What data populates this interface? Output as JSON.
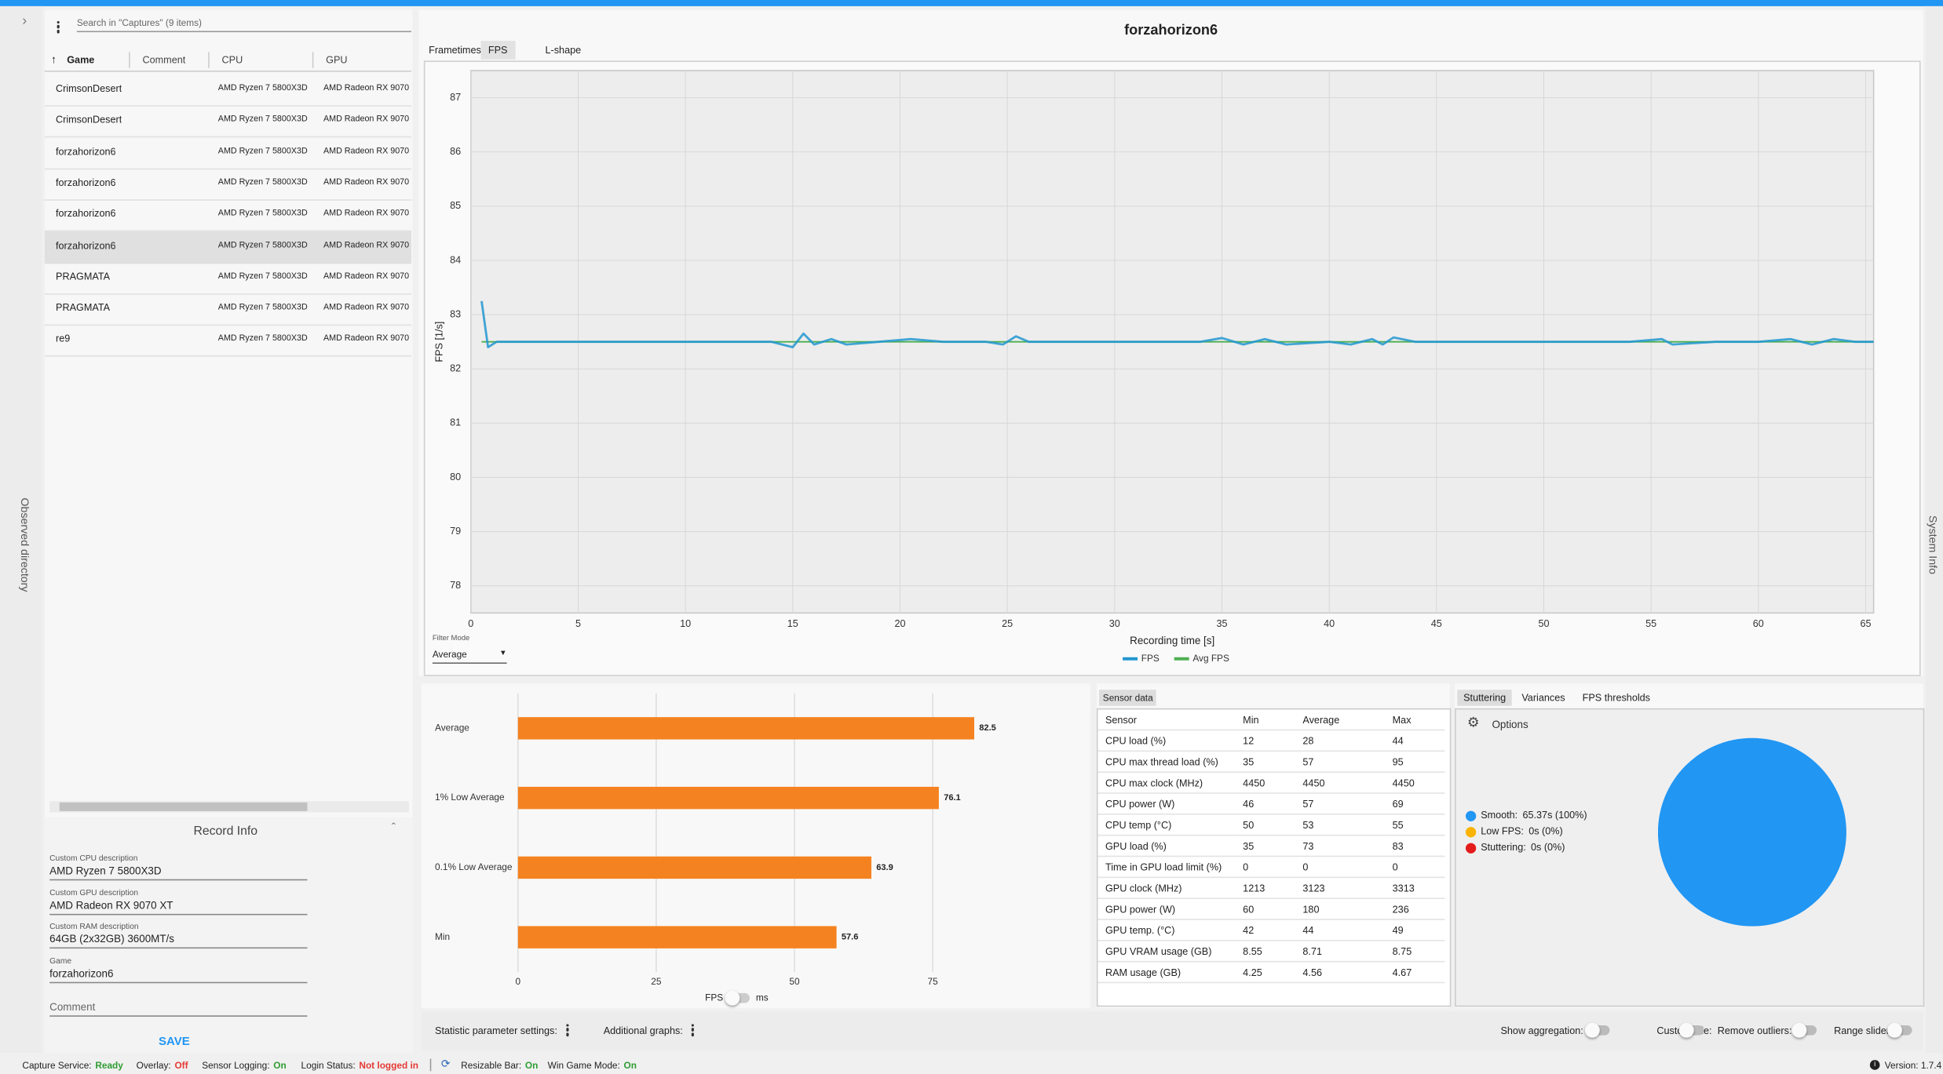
{
  "sidebar": {
    "search_placeholder": "Search in \"Captures\" (9 items)",
    "columns": [
      "Game",
      "Comment",
      "CPU",
      "GPU"
    ],
    "rows": [
      {
        "game": "CrimsonDesert",
        "cpu": "AMD Ryzen 7 5800X3D",
        "gpu": "AMD Radeon RX 9070"
      },
      {
        "game": "CrimsonDesert",
        "cpu": "AMD Ryzen 7 5800X3D",
        "gpu": "AMD Radeon RX 9070"
      },
      {
        "game": "forzahorizon6",
        "cpu": "AMD Ryzen 7 5800X3D",
        "gpu": "AMD Radeon RX 9070"
      },
      {
        "game": "forzahorizon6",
        "cpu": "AMD Ryzen 7 5800X3D",
        "gpu": "AMD Radeon RX 9070"
      },
      {
        "game": "forzahorizon6",
        "cpu": "AMD Ryzen 7 5800X3D",
        "gpu": "AMD Radeon RX 9070"
      },
      {
        "game": "forzahorizon6",
        "cpu": "AMD Ryzen 7 5800X3D",
        "gpu": "AMD Radeon RX 9070"
      },
      {
        "game": "PRAGMATA",
        "cpu": "AMD Ryzen 7 5800X3D",
        "gpu": "AMD Radeon RX 9070"
      },
      {
        "game": "PRAGMATA",
        "cpu": "AMD Ryzen 7 5800X3D",
        "gpu": "AMD Radeon RX 9070"
      },
      {
        "game": "re9",
        "cpu": "AMD Ryzen 7 5800X3D",
        "gpu": "AMD Radeon RX 9070"
      }
    ],
    "selected_row": 5,
    "record_info": {
      "title": "Record Info",
      "fields": [
        {
          "label": "Custom CPU description",
          "value": "AMD Ryzen 7 5800X3D"
        },
        {
          "label": "Custom GPU description",
          "value": "AMD Radeon RX 9070 XT"
        },
        {
          "label": "Custom RAM description",
          "value": "64GB (2x32GB) 3600MT/s"
        },
        {
          "label": "Game",
          "value": "forzahorizon6"
        }
      ],
      "comment_placeholder": "Comment",
      "save": "SAVE"
    }
  },
  "side_tabs": {
    "left": "Observed directory",
    "right": "System Info"
  },
  "header": {
    "title": "forzahorizon6",
    "tabs": [
      "Frametimes",
      "FPS",
      "L-shape"
    ],
    "active_tab": 1
  },
  "filter": {
    "label": "Filter Mode",
    "value": "Average"
  },
  "chart_data": [
    {
      "type": "line",
      "x_label": "Recording time [s]",
      "y_label": "FPS [1/s]",
      "x": [
        0.5,
        0.8,
        1.2,
        2,
        4,
        6,
        8,
        10,
        12,
        14,
        15,
        15.5,
        16,
        16.8,
        17.5,
        19,
        20.5,
        22,
        24,
        24.8,
        25.4,
        26,
        28,
        30,
        32,
        34,
        35,
        36,
        37,
        38,
        40,
        41,
        42,
        42.5,
        43,
        44,
        46,
        48,
        50,
        52,
        54,
        55.5,
        56,
        58,
        60,
        61.5,
        62.5,
        63.5,
        64.5,
        65.37
      ],
      "series": [
        {
          "name": "FPS",
          "color": "#2196d0",
          "values": [
            83.25,
            82.4,
            82.5,
            82.5,
            82.5,
            82.5,
            82.5,
            82.5,
            82.5,
            82.5,
            82.4,
            82.65,
            82.45,
            82.55,
            82.45,
            82.5,
            82.55,
            82.5,
            82.5,
            82.45,
            82.6,
            82.5,
            82.5,
            82.5,
            82.5,
            82.5,
            82.57,
            82.45,
            82.55,
            82.45,
            82.5,
            82.45,
            82.55,
            82.45,
            82.58,
            82.5,
            82.5,
            82.5,
            82.5,
            82.5,
            82.5,
            82.55,
            82.45,
            82.5,
            82.5,
            82.55,
            82.45,
            82.55,
            82.5,
            82.5
          ]
        },
        {
          "name": "Avg FPS",
          "color": "#4caf50",
          "values": [
            82.5,
            82.5,
            82.5,
            82.5,
            82.5,
            82.5,
            82.5,
            82.5,
            82.5,
            82.5,
            82.5,
            82.5,
            82.5,
            82.5,
            82.5,
            82.5,
            82.5,
            82.5,
            82.5,
            82.5,
            82.5,
            82.5,
            82.5,
            82.5,
            82.5,
            82.5,
            82.5,
            82.5,
            82.5,
            82.5,
            82.5,
            82.5,
            82.5,
            82.5,
            82.5,
            82.5,
            82.5,
            82.5,
            82.5,
            82.5,
            82.5,
            82.5,
            82.5,
            82.5,
            82.5,
            82.5,
            82.5,
            82.5,
            82.5,
            82.5
          ]
        }
      ],
      "xlim": [
        0,
        65.37
      ],
      "xticks": [
        0,
        5,
        10,
        15,
        20,
        25,
        30,
        35,
        40,
        45,
        50,
        55,
        60,
        65
      ],
      "ylim": [
        77.5,
        87.5
      ],
      "yticks": [
        78,
        79,
        80,
        81,
        82,
        83,
        84,
        85,
        86,
        87
      ],
      "grid": true,
      "legend": "bottom"
    },
    {
      "type": "bar",
      "orientation": "horizontal",
      "categories": [
        "Average",
        "1% Low Average",
        "0.1% Low Average",
        "Min"
      ],
      "values": [
        82.5,
        76.1,
        63.9,
        57.6
      ],
      "color": "#f58220",
      "xlim": [
        0,
        95
      ],
      "xticks": [
        0,
        25,
        50,
        75
      ],
      "grid": true
    },
    {
      "type": "pie",
      "categories": [
        "Smooth:",
        "Low FPS:",
        "Stuttering:"
      ],
      "values": [
        65.37,
        0,
        0
      ],
      "value_labels": [
        "65.37s (100%)",
        "0s (0%)",
        "0s (0%)"
      ],
      "colors": [
        "#2196f3",
        "#f9b300",
        "#e31b1b"
      ]
    }
  ],
  "bar_toggle": {
    "left": "FPS",
    "right": "ms"
  },
  "sensor": {
    "tab": "Sensor data",
    "columns": [
      "Sensor",
      "Min",
      "Average",
      "Max"
    ],
    "rows": [
      [
        "CPU load (%)",
        12,
        28,
        44
      ],
      [
        "CPU max thread load (%)",
        35,
        57,
        95
      ],
      [
        "CPU max clock (MHz)",
        4450,
        4450,
        4450
      ],
      [
        "CPU power (W)",
        46,
        57,
        69
      ],
      [
        "CPU temp (°C)",
        50,
        53,
        55
      ],
      [
        "GPU load (%)",
        35,
        73,
        83
      ],
      [
        "Time in GPU load limit (%)",
        0,
        0,
        0
      ],
      [
        "GPU clock (MHz)",
        1213,
        3123,
        3313
      ],
      [
        "GPU power (W)",
        60,
        180,
        236
      ],
      [
        "GPU temp. (°C)",
        42,
        44,
        49
      ],
      [
        "GPU VRAM usage (GB)",
        8.55,
        8.71,
        8.75
      ],
      [
        "RAM usage (GB)",
        4.25,
        4.56,
        4.67
      ]
    ]
  },
  "stutter": {
    "tabs": [
      "Stuttering",
      "Variances",
      "FPS thresholds"
    ],
    "active_tab": 0,
    "options": "Options"
  },
  "toolbar": {
    "left": [
      "Statistic parameter settings:",
      "Additional graphs:"
    ],
    "right": [
      "Show aggregation:",
      "Custom title:",
      "Remove outliers:",
      "Range slider:"
    ]
  },
  "status": [
    {
      "label": "Capture Service:",
      "value": "Ready",
      "color": "#2e9d32"
    },
    {
      "label": "Overlay:",
      "value": "Off",
      "color": "#e53935"
    },
    {
      "label": "Sensor Logging:",
      "value": "On",
      "color": "#2e9d32"
    },
    {
      "label": "Login Status:",
      "value": "Not logged in",
      "color": "#e53935"
    },
    {
      "label": "Resizable Bar:",
      "value": "On",
      "color": "#2e9d32"
    },
    {
      "label": "Win Game Mode:",
      "value": "On",
      "color": "#2e9d32"
    }
  ],
  "version": "Version: 1.7.4"
}
